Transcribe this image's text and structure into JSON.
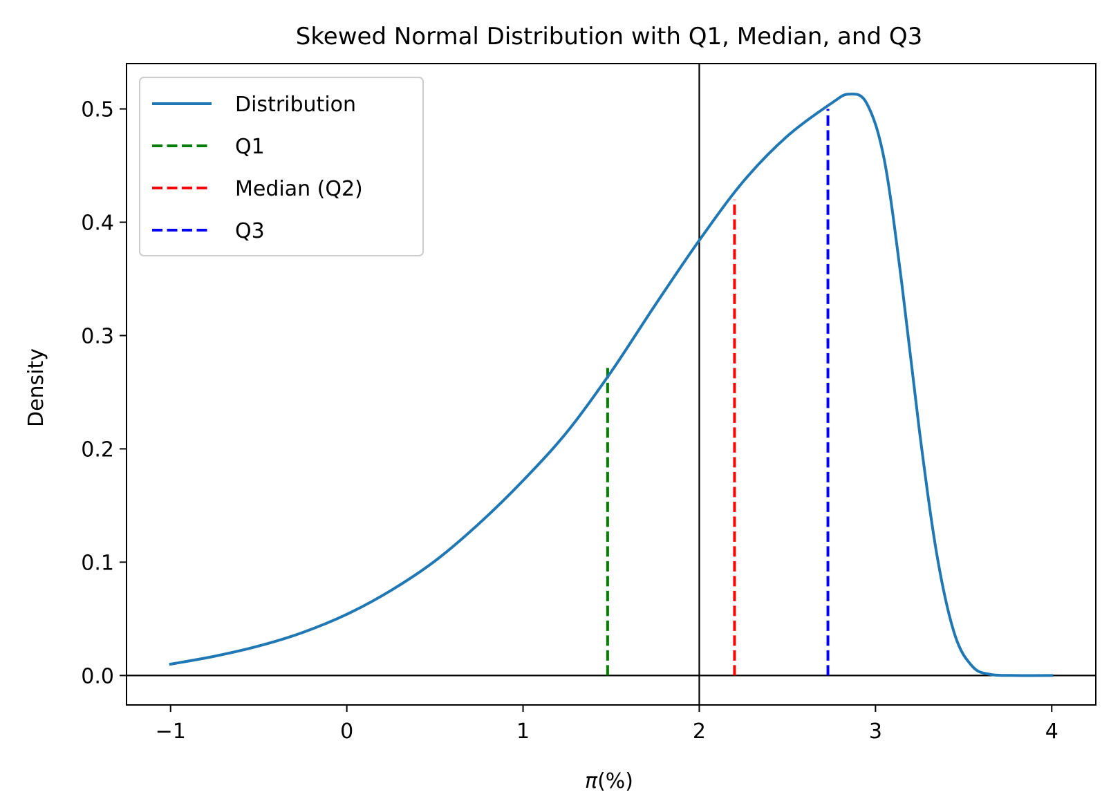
{
  "chart_data": {
    "type": "line",
    "title": "Skewed Normal Distribution with Q1, Median, and Q3",
    "xlabel_italic": "π",
    "xlabel_rest": "(%)",
    "ylabel": "Density",
    "xlim": [
      -1.25,
      4.25
    ],
    "ylim": [
      -0.026,
      0.54
    ],
    "xticks": [
      -1,
      0,
      1,
      2,
      3,
      4
    ],
    "xtick_labels": [
      "−1",
      "0",
      "1",
      "2",
      "3",
      "4"
    ],
    "yticks": [
      0.0,
      0.1,
      0.2,
      0.3,
      0.4,
      0.5
    ],
    "ytick_labels": [
      "0.0",
      "0.1",
      "0.2",
      "0.3",
      "0.4",
      "0.5"
    ],
    "reference_lines": {
      "horizontal_y": 0.0,
      "vertical_x": 2.0,
      "color": "#000000"
    },
    "series": [
      {
        "name": "Distribution",
        "color": "#1f77b4",
        "style": "solid",
        "x": [
          -1.0,
          -0.75,
          -0.5,
          -0.25,
          0.0,
          0.25,
          0.5,
          0.75,
          1.0,
          1.25,
          1.5,
          1.75,
          2.0,
          2.25,
          2.5,
          2.75,
          2.85,
          2.95,
          3.05,
          3.15,
          3.25,
          3.35,
          3.45,
          3.55,
          3.65,
          3.8,
          4.0
        ],
        "y": [
          0.01,
          0.017,
          0.026,
          0.038,
          0.054,
          0.075,
          0.101,
          0.134,
          0.172,
          0.215,
          0.268,
          0.327,
          0.384,
          0.436,
          0.476,
          0.505,
          0.513,
          0.505,
          0.455,
          0.345,
          0.215,
          0.105,
          0.036,
          0.008,
          0.001,
          0.0,
          0.0
        ]
      }
    ],
    "markers": [
      {
        "name": "Q1",
        "x": 1.48,
        "y_top": 0.275,
        "color": "#008000",
        "style": "dashed"
      },
      {
        "name": "Median (Q2)",
        "x": 2.2,
        "y_top": 0.42,
        "color": "#ff0000",
        "style": "dashed"
      },
      {
        "name": "Q3",
        "x": 2.73,
        "y_top": 0.5,
        "color": "#0000ff",
        "style": "dashed"
      }
    ],
    "legend": {
      "position": "top-left",
      "entries": [
        {
          "label": "Distribution",
          "color": "#1f77b4",
          "style": "solid"
        },
        {
          "label": "Q1",
          "color": "#008000",
          "style": "dashed"
        },
        {
          "label": "Median (Q2)",
          "color": "#ff0000",
          "style": "dashed"
        },
        {
          "label": "Q3",
          "color": "#0000ff",
          "style": "dashed"
        }
      ]
    }
  }
}
